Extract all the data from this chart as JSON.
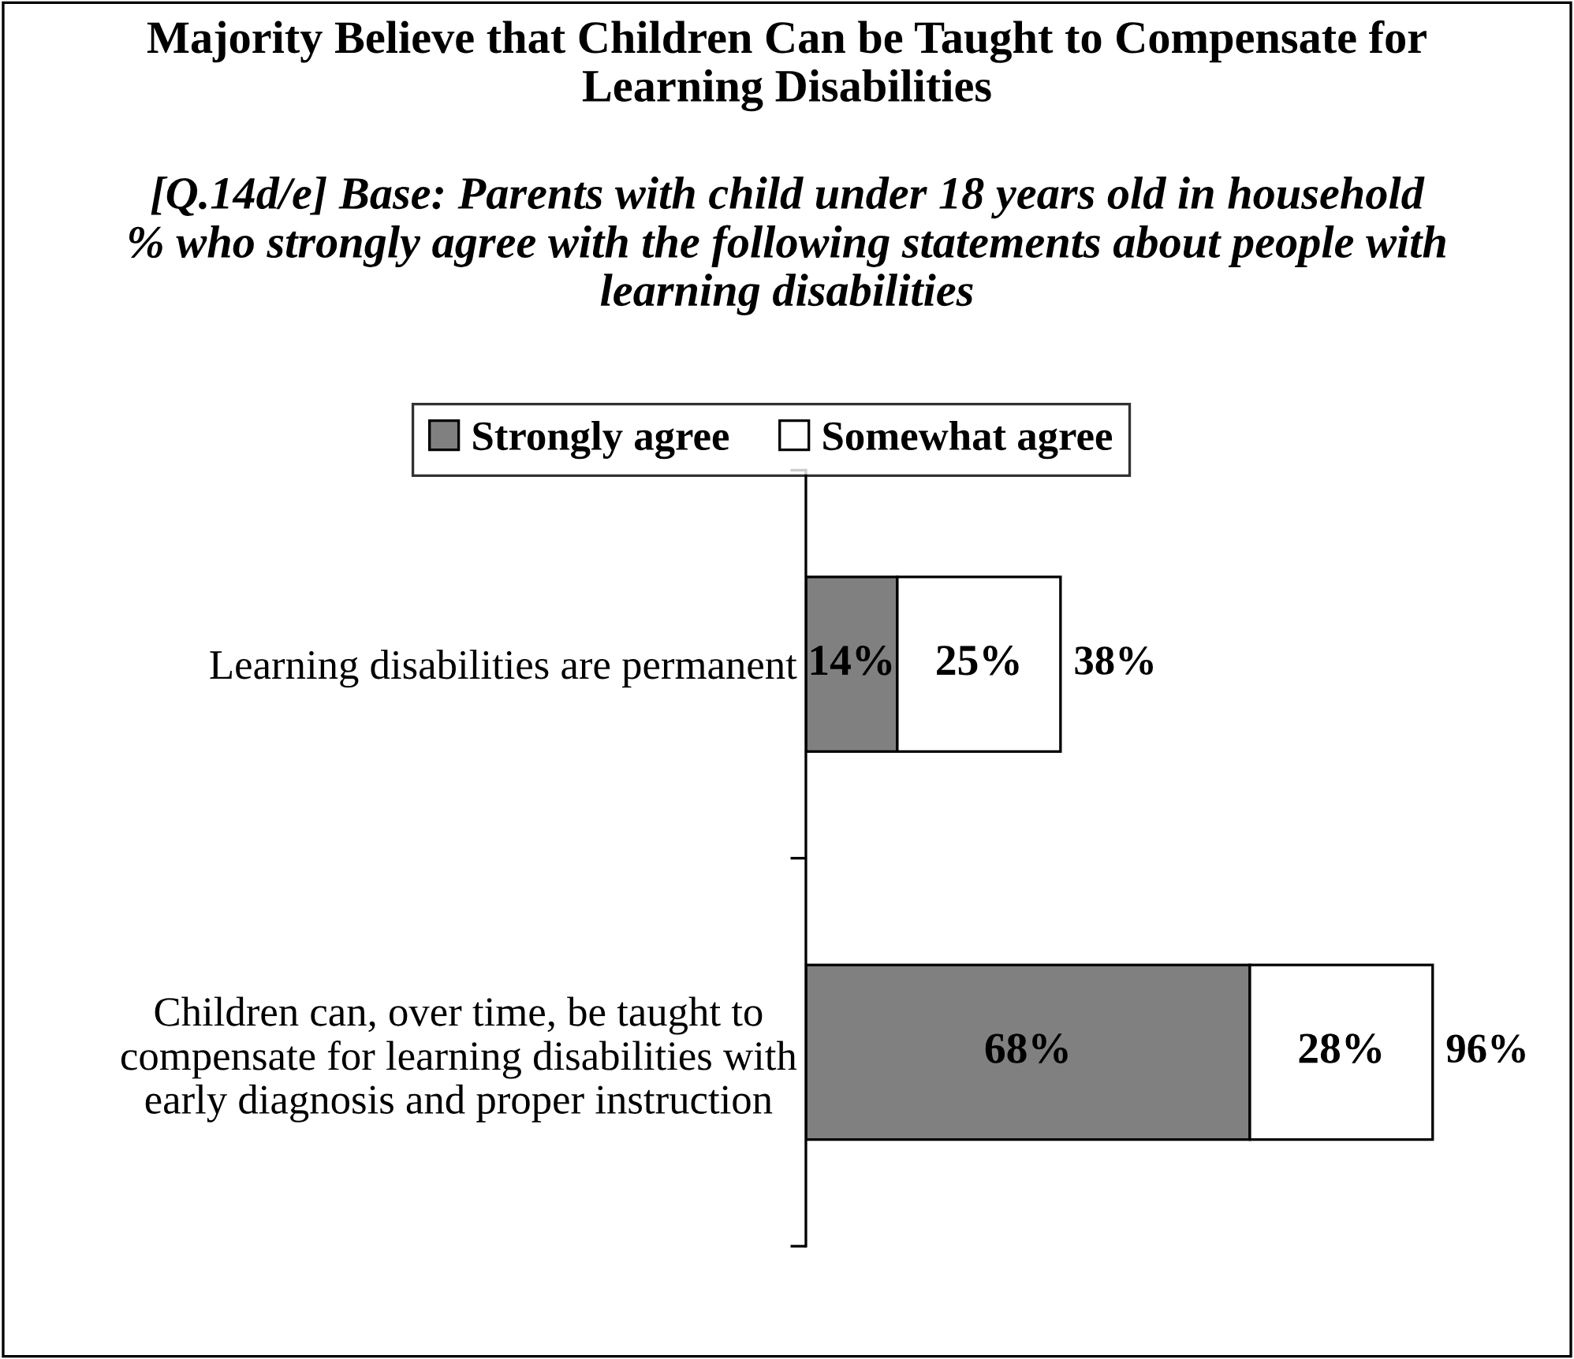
{
  "chart_data": {
    "type": "bar",
    "orientation": "horizontal",
    "stacked": true,
    "title": "Majority Believe that Children Can be Taught to Compensate for\nLearning Disabilities",
    "subtitle": "[Q.14d/e] Base: Parents with child under 18 years old in household\n% who strongly agree with the following statements about people with\nlearning disabilities",
    "categories": [
      "Learning disabilities are permanent",
      "Children can, over time, be taught to\ncompensate for learning disabilities with\nearly diagnosis and proper instruction"
    ],
    "series": [
      {
        "name": "Strongly agree",
        "color": "#808080",
        "values": [
          14,
          68
        ],
        "value_labels": [
          "14%",
          "68%"
        ]
      },
      {
        "name": "Somewhat agree",
        "color": "#ffffff",
        "values": [
          25,
          28
        ],
        "value_labels": [
          "25%",
          "28%"
        ]
      }
    ],
    "totals": [
      "38%",
      "96%"
    ],
    "legend": "top"
  }
}
